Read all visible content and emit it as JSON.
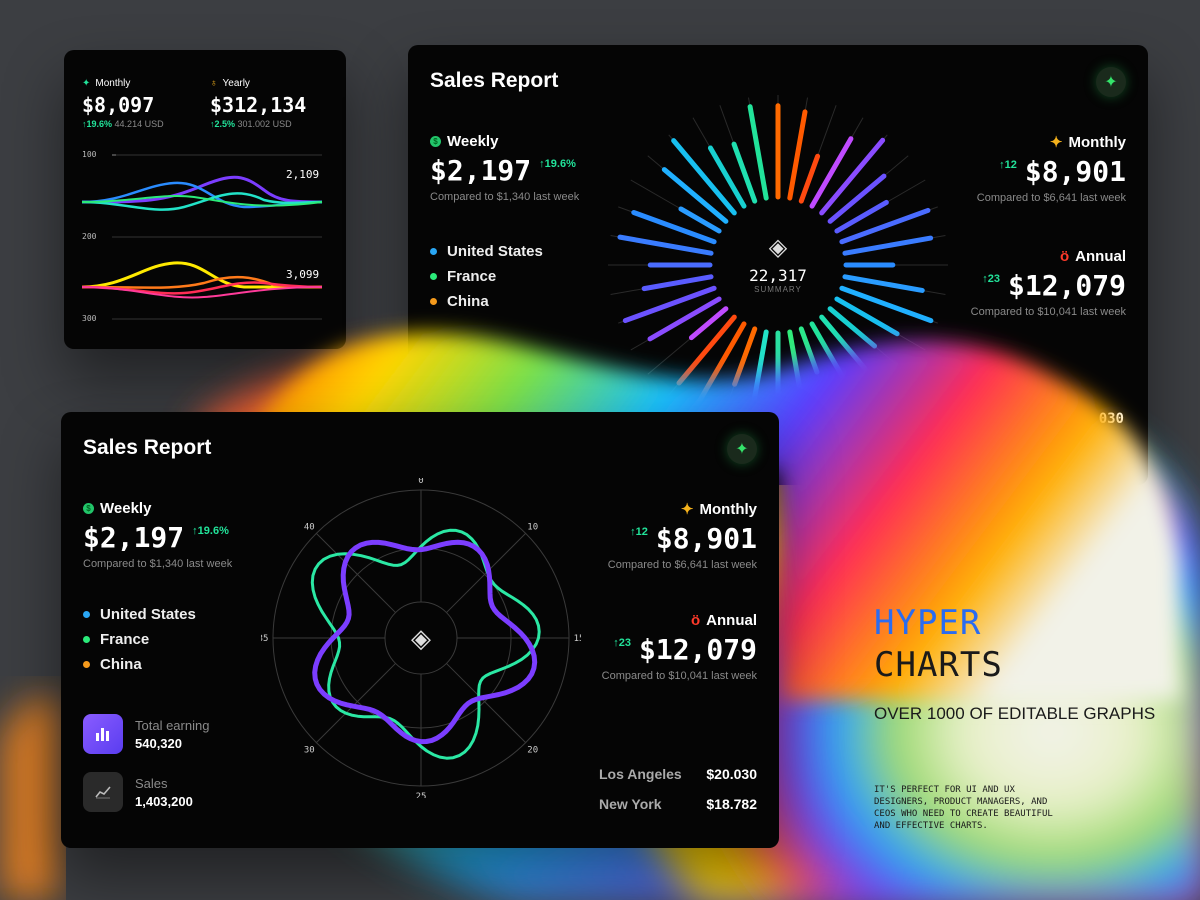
{
  "mini_card": {
    "monthly": {
      "label": "Monthly",
      "value": "$8,097",
      "change": "↑19.6%",
      "sub": "44.214 USD"
    },
    "yearly": {
      "label": "Yearly",
      "value": "$312,134",
      "change": "↑2.5%",
      "sub": "301.002 USD"
    },
    "axis": [
      "100",
      "200",
      "300"
    ],
    "readout_top": "2,109",
    "readout_bottom": "3,099"
  },
  "top_report": {
    "title": "Sales Report",
    "weekly": {
      "label": "Weekly",
      "value": "$2,197",
      "change": "↑19.6%",
      "compare": "Compared to $1,340 last week"
    },
    "monthly": {
      "label": "Monthly",
      "delta": "↑12",
      "value": "$8,901",
      "compare": "Compared to $6,641 last week"
    },
    "annual": {
      "label": "Annual",
      "delta": "↑23",
      "value": "$12,079",
      "compare": "Compared to $10,041 last week"
    },
    "legend": [
      {
        "label": "United States",
        "color": "#2aa7f5"
      },
      {
        "label": "France",
        "color": "#2bea7a"
      },
      {
        "label": "China",
        "color": "#f59a1c"
      }
    ],
    "summary_value": "22,317",
    "summary_label": "SUMMARY",
    "peek_value": "030"
  },
  "main_report": {
    "title": "Sales Report",
    "weekly": {
      "label": "Weekly",
      "value": "$2,197",
      "change": "↑19.6%",
      "compare": "Compared to $1,340 last week"
    },
    "monthly": {
      "label": "Monthly",
      "delta": "↑12",
      "value": "$8,901",
      "compare": "Compared to $6,641 last week"
    },
    "annual": {
      "label": "Annual",
      "delta": "↑23",
      "value": "$12,079",
      "compare": "Compared to $10,041 last week"
    },
    "legend": [
      {
        "label": "United States",
        "color": "#2aa7f5"
      },
      {
        "label": "France",
        "color": "#2bea7a"
      },
      {
        "label": "China",
        "color": "#f59a1c"
      }
    ],
    "stats": [
      {
        "label": "Total earning",
        "value": "540,320",
        "icon": "bar-chart-icon"
      },
      {
        "label": "Sales",
        "value": "1,403,200",
        "icon": "line-chart-icon"
      }
    ],
    "cities": [
      {
        "name": "Los Angeles",
        "value": "$20.030"
      },
      {
        "name": "New York",
        "value": "$18.782"
      }
    ],
    "radar_ticks": [
      "0",
      "10",
      "15",
      "20",
      "25",
      "30",
      "35",
      "40"
    ]
  },
  "promo": {
    "title_line1": "HYPER",
    "title_line2": "CHARTS",
    "subtitle": "OVER 1000 OF EDITABLE GRAPHS",
    "body": "IT'S PERFECT FOR UI AND UX DESIGNERS, PRODUCT MANAGERS, AND CEOS WHO NEED TO CREATE BEAUTIFUL AND EFFECTIVE CHARTS."
  },
  "colors": {
    "accent_green": "#22e39a",
    "purple": "#7b4dff",
    "blue": "#3a6cf0",
    "orange": "#ff6a00"
  }
}
